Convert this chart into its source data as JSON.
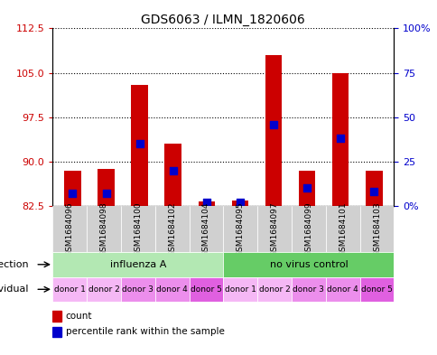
{
  "title": "GDS6063 / ILMN_1820606",
  "samples": [
    "GSM1684096",
    "GSM1684098",
    "GSM1684100",
    "GSM1684102",
    "GSM1684104",
    "GSM1684095",
    "GSM1684097",
    "GSM1684099",
    "GSM1684101",
    "GSM1684103"
  ],
  "red_values": [
    88.5,
    88.8,
    103.0,
    93.0,
    83.2,
    83.4,
    108.0,
    88.5,
    105.0,
    88.5
  ],
  "blue_values_pct": [
    7,
    7,
    35,
    20,
    2,
    2,
    46,
    10,
    38,
    8
  ],
  "ylim_left": [
    82.5,
    112.5
  ],
  "ylim_right": [
    0,
    100
  ],
  "yticks_left": [
    82.5,
    90.0,
    97.5,
    105.0,
    112.5
  ],
  "yticks_right": [
    0,
    25,
    50,
    75,
    100
  ],
  "ytick_labels_right": [
    "0%",
    "25",
    "50",
    "75",
    "100%"
  ],
  "infection_groups": [
    {
      "label": "influenza A",
      "start": 0,
      "end": 5,
      "color": "#b3e8b3"
    },
    {
      "label": "no virus control",
      "start": 5,
      "end": 10,
      "color": "#66cc66"
    }
  ],
  "individual_labels": [
    "donor 1",
    "donor 2",
    "donor 3",
    "donor 4",
    "donor 5",
    "donor 1",
    "donor 2",
    "donor 3",
    "donor 4",
    "donor 5"
  ],
  "individual_colors": [
    "#f0b0f0",
    "#f0b0f0",
    "#e890e8",
    "#e890e8",
    "#e060e0",
    "#f0b0f0",
    "#f0b0f0",
    "#e890e8",
    "#e890e8",
    "#e060e0"
  ],
  "bar_color": "#cc0000",
  "blue_color": "#0000cc",
  "bar_width": 0.5,
  "blue_square_size": 35,
  "base_value": 82.5,
  "infection_row_color_light": "#c8f0c8",
  "infection_row_color_dark": "#66dd66",
  "individual_row_colors": [
    "#f5b8f5",
    "#f5b8f5",
    "#ec8eec",
    "#ec8eec",
    "#e060e0",
    "#f5b8f5",
    "#f5b8f5",
    "#ec8eec",
    "#ec8eec",
    "#e060e0"
  ],
  "grid_color": "black",
  "left_tick_color": "#cc0000",
  "right_tick_color": "#0000cc",
  "bg_color": "#ffffff",
  "plot_bg_color": "#ffffff"
}
